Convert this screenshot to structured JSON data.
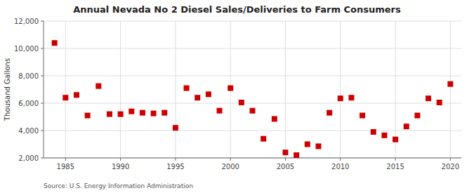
{
  "chart_data": {
    "type": "scatter",
    "title": "Annual Nevada No 2 Diesel Sales/Deliveries to Farm Consumers",
    "y_label": "Thousand Gallons",
    "annotations": [
      "Source: U.S. Energy Information Administration"
    ],
    "x": [
      1984,
      1985,
      1986,
      1987,
      1988,
      1989,
      1990,
      1991,
      1992,
      1993,
      1994,
      1995,
      1996,
      1997,
      1998,
      1999,
      2000,
      2001,
      2002,
      2003,
      2004,
      2005,
      2006,
      2007,
      2008,
      2009,
      2010,
      2011,
      2012,
      2013,
      2014,
      2015,
      2016,
      2017,
      2018,
      2019,
      2020
    ],
    "values": [
      10400,
      6400,
      6600,
      5100,
      7250,
      5200,
      5200,
      5400,
      5300,
      5250,
      5300,
      4200,
      7100,
      6400,
      6650,
      5450,
      7100,
      6050,
      5450,
      3400,
      4850,
      2400,
      2200,
      3000,
      2850,
      5300,
      6350,
      6400,
      5100,
      3900,
      3650,
      3350,
      4300,
      5100,
      6350,
      6050,
      7400
    ],
    "color": "#cc0000",
    "marker": "square",
    "xlim": [
      1983,
      2021
    ],
    "ylim": [
      2000,
      12000
    ],
    "xticks": [
      1985,
      1990,
      1995,
      2000,
      2005,
      2010,
      2015,
      2020
    ],
    "yticks": [
      {
        "value": 2000,
        "label": "2,000"
      },
      {
        "value": 4000,
        "label": "4,000"
      },
      {
        "value": 6000,
        "label": "6,000"
      },
      {
        "value": 8000,
        "label": "8,000"
      },
      {
        "value": 10000,
        "label": "10,000"
      },
      {
        "value": 12000,
        "label": "12,000"
      }
    ],
    "grid": true
  }
}
